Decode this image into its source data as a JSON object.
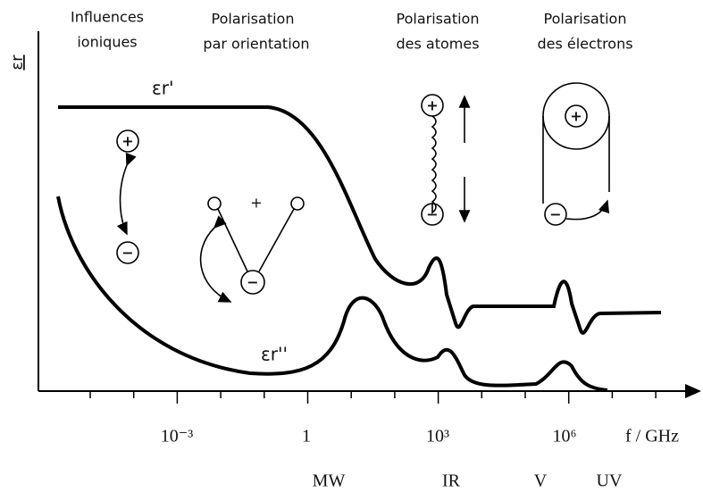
{
  "headers": [
    {
      "lines": [
        "Influences",
        "ioniques"
      ]
    },
    {
      "lines": [
        "Polarisation",
        "par orientation"
      ]
    },
    {
      "lines": [
        "Polarisation",
        "des atomes"
      ]
    },
    {
      "lines": [
        "Polarisation",
        "des électrons"
      ]
    }
  ],
  "axis": {
    "y_label": "εr",
    "x_label": "f / GHz",
    "ticks": [
      "10⁻³",
      "1",
      "10³",
      "10⁶"
    ]
  },
  "curves": {
    "real": "εr'",
    "imag": "εr''"
  },
  "bands": [
    "MW",
    "IR",
    "V",
    "UV"
  ],
  "symbols": {
    "plus": "+",
    "minus": "−"
  }
}
